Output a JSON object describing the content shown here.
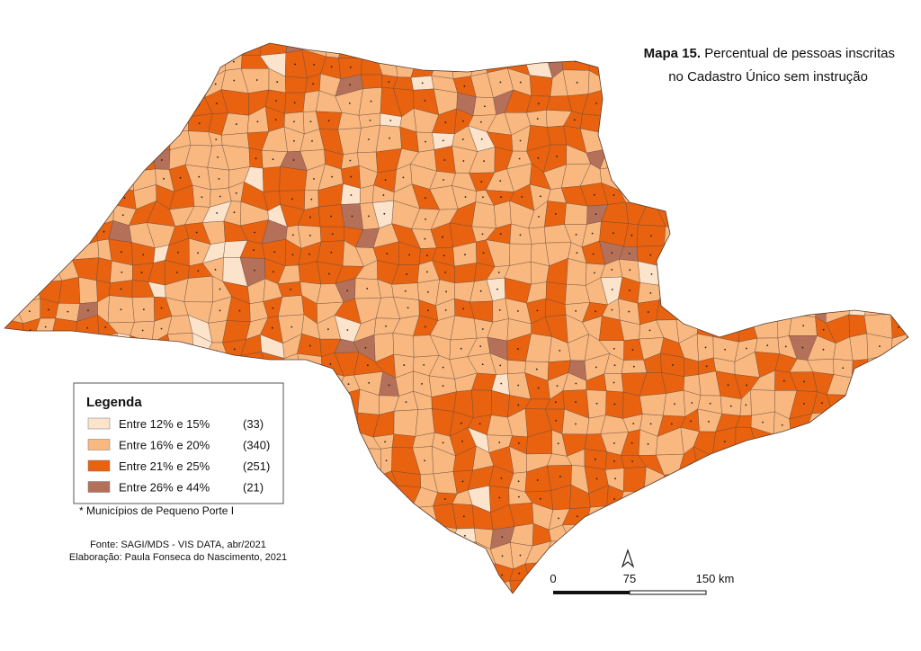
{
  "title": {
    "bold": "Mapa 15.",
    "line1": "Percentual de pessoas inscritas",
    "line2": "no Cadastro Único sem instrução"
  },
  "legend": {
    "heading": "Legenda",
    "items": [
      {
        "label": "Entre 12% e 15%",
        "count": "(33)",
        "color": "#fbe3cc"
      },
      {
        "label": "Entre 16% e 20%",
        "count": "(340)",
        "color": "#f8b880"
      },
      {
        "label": "Entre 21% e 25%",
        "count": "(251)",
        "color": "#e8620f"
      },
      {
        "label": "Entre 26% e 44%",
        "count": "(21)",
        "color": "#b5705a"
      }
    ]
  },
  "note": "* Municípios de Pequeno Porte I",
  "source": {
    "line1": "Fonte: SAGI/MDS - VIS DATA, abr/2021",
    "line2": "Elaboração: Paula Fonseca do Nascimento, 2021"
  },
  "scale": {
    "labels": [
      "0",
      "75",
      "150 km"
    ]
  }
}
